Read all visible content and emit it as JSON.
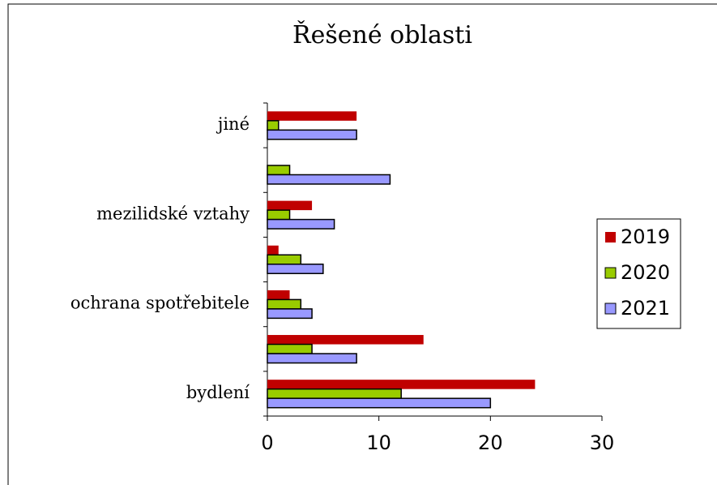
{
  "chart_data": {
    "type": "bar",
    "orientation": "horizontal",
    "title": "Řešené oblasti",
    "categories": [
      "bydlení",
      null,
      "ochrana spotřebitele",
      null,
      "mezilidské vztahy",
      null,
      "jiné"
    ],
    "series": [
      {
        "name": "2019",
        "color": "#c00000",
        "values": [
          24,
          14,
          2,
          1,
          4,
          0,
          8
        ]
      },
      {
        "name": "2020",
        "color": "#99cc00",
        "values": [
          12,
          4,
          3,
          3,
          2,
          2,
          1
        ]
      },
      {
        "name": "2021",
        "color": "#9999ff",
        "values": [
          20,
          8,
          4,
          5,
          6,
          11,
          8
        ]
      }
    ],
    "xlim": [
      0,
      30
    ],
    "xticks": [
      0,
      10,
      20,
      30
    ],
    "legend": "right"
  }
}
